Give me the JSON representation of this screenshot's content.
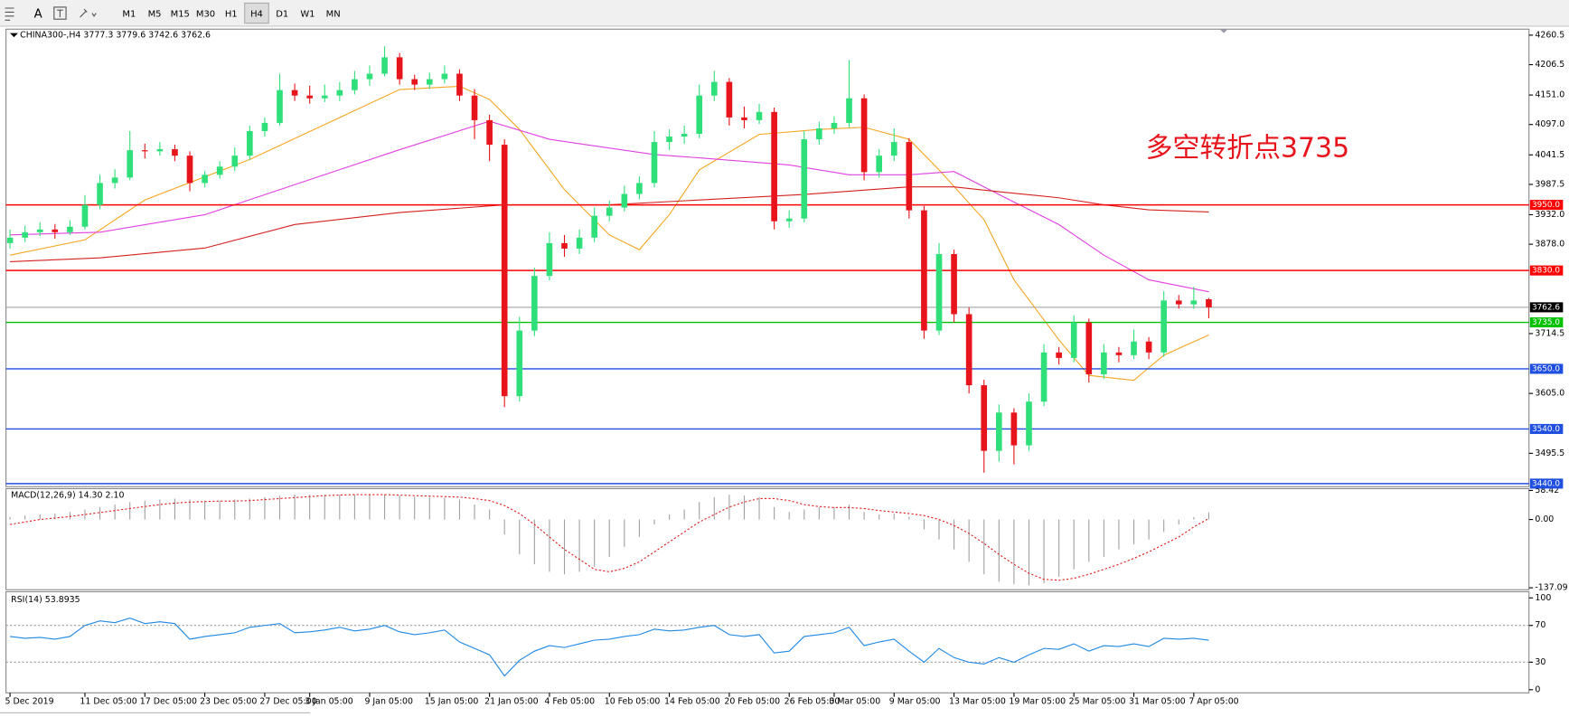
{
  "toolbar": {
    "text_tool": "A",
    "timeframes": [
      "M1",
      "M5",
      "M15",
      "M30",
      "H1",
      "H4",
      "D1",
      "W1",
      "MN"
    ],
    "active": "H4"
  },
  "chart_data": {
    "type": "candlestick",
    "title": "CHINA300-,H4 3777.3 3779.6 3742.6 3762.6",
    "annotation": "多空转折点3735",
    "up_color": "#2fe07a",
    "down_color": "#e8141b",
    "categories": [
      "5 Dec 2019",
      null,
      null,
      null,
      null,
      "11 Dec 05:00",
      null,
      null,
      null,
      "17 Dec 05:00",
      null,
      null,
      null,
      "23 Dec 05:00",
      null,
      null,
      null,
      "27 Dec 05:00",
      null,
      null,
      "3 Jan 05:00",
      null,
      null,
      null,
      "9 Jan 05:00",
      null,
      null,
      null,
      "15 Jan 05:00",
      null,
      null,
      null,
      "21 Jan 05:00",
      null,
      null,
      null,
      "4 Feb 05:00",
      null,
      null,
      null,
      "10 Feb 05:00",
      null,
      null,
      null,
      "14 Feb 05:00",
      null,
      null,
      null,
      "20 Feb 05:00",
      null,
      null,
      null,
      "26 Feb 05:00",
      null,
      null,
      "3 Mar 05:00",
      null,
      null,
      null,
      "9 Mar 05:00",
      null,
      null,
      null,
      "13 Mar 05:00",
      null,
      null,
      null,
      "19 Mar 05:00",
      null,
      null,
      null,
      "25 Mar 05:00",
      null,
      null,
      null,
      "31 Mar 05:00",
      null,
      null,
      null,
      "7 Apr 05:00",
      null
    ],
    "ohlc": [
      [
        3880,
        3905,
        3870,
        3890
      ],
      [
        3890,
        3912,
        3882,
        3900
      ],
      [
        3900,
        3918,
        3893,
        3905
      ],
      [
        3905,
        3915,
        3888,
        3900
      ],
      [
        3900,
        3922,
        3895,
        3910
      ],
      [
        3910,
        3968,
        3905,
        3950
      ],
      [
        3950,
        4005,
        3942,
        3990
      ],
      [
        3990,
        4015,
        3980,
        4000
      ],
      [
        4000,
        4085,
        3995,
        4050
      ],
      [
        4050,
        4062,
        4035,
        4048
      ],
      [
        4048,
        4065,
        4040,
        4052
      ],
      [
        4052,
        4060,
        4030,
        4040
      ],
      [
        4040,
        4048,
        3975,
        3990
      ],
      [
        3990,
        4012,
        3982,
        4005
      ],
      [
        4005,
        4030,
        3998,
        4020
      ],
      [
        4020,
        4055,
        4012,
        4040
      ],
      [
        4040,
        4095,
        4032,
        4085
      ],
      [
        4085,
        4110,
        4075,
        4100
      ],
      [
        4100,
        4190,
        4095,
        4160
      ],
      [
        4160,
        4172,
        4140,
        4150
      ],
      [
        4150,
        4168,
        4135,
        4145
      ],
      [
        4145,
        4170,
        4138,
        4150
      ],
      [
        4150,
        4175,
        4140,
        4160
      ],
      [
        4160,
        4195,
        4152,
        4180
      ],
      [
        4180,
        4205,
        4168,
        4190
      ],
      [
        4190,
        4240,
        4185,
        4220
      ],
      [
        4220,
        4228,
        4170,
        4180
      ],
      [
        4180,
        4188,
        4160,
        4170
      ],
      [
        4170,
        4192,
        4163,
        4180
      ],
      [
        4180,
        4205,
        4172,
        4190
      ],
      [
        4190,
        4198,
        4140,
        4150
      ],
      [
        4150,
        4162,
        4070,
        4105
      ],
      [
        4105,
        4115,
        4030,
        4060
      ],
      [
        4060,
        4070,
        3580,
        3600
      ],
      [
        3600,
        3745,
        3590,
        3720
      ],
      [
        3720,
        3835,
        3710,
        3820
      ],
      [
        3820,
        3900,
        3812,
        3880
      ],
      [
        3880,
        3895,
        3855,
        3870
      ],
      [
        3870,
        3905,
        3860,
        3890
      ],
      [
        3890,
        3945,
        3882,
        3930
      ],
      [
        3930,
        3958,
        3920,
        3945
      ],
      [
        3945,
        3985,
        3938,
        3970
      ],
      [
        3970,
        4002,
        3960,
        3990
      ],
      [
        3990,
        4085,
        3982,
        4065
      ],
      [
        4065,
        4088,
        4050,
        4075
      ],
      [
        4075,
        4095,
        4062,
        4080
      ],
      [
        4080,
        4170,
        4072,
        4150
      ],
      [
        4150,
        4195,
        4140,
        4175
      ],
      [
        4175,
        4182,
        4095,
        4110
      ],
      [
        4110,
        4130,
        4090,
        4105
      ],
      [
        4105,
        4135,
        4098,
        4120
      ],
      [
        4120,
        4128,
        3905,
        3920
      ],
      [
        3920,
        3940,
        3908,
        3925
      ],
      [
        3925,
        4085,
        3918,
        4070
      ],
      [
        4070,
        4102,
        4060,
        4090
      ],
      [
        4090,
        4112,
        4080,
        4100
      ],
      [
        4100,
        4215,
        4092,
        4145
      ],
      [
        4145,
        4152,
        3995,
        4010
      ],
      [
        4010,
        4052,
        4000,
        4040
      ],
      [
        4040,
        4090,
        4030,
        4065
      ],
      [
        4065,
        4072,
        3925,
        3940
      ],
      [
        3940,
        3948,
        3705,
        3720
      ],
      [
        3720,
        3880,
        3712,
        3860
      ],
      [
        3860,
        3868,
        3735,
        3750
      ],
      [
        3750,
        3762,
        3605,
        3620
      ],
      [
        3620,
        3630,
        3460,
        3500
      ],
      [
        3500,
        3585,
        3480,
        3570
      ],
      [
        3570,
        3578,
        3475,
        3510
      ],
      [
        3510,
        3605,
        3500,
        3590
      ],
      [
        3590,
        3695,
        3582,
        3680
      ],
      [
        3680,
        3690,
        3658,
        3670
      ],
      [
        3670,
        3748,
        3662,
        3735
      ],
      [
        3735,
        3742,
        3625,
        3640
      ],
      [
        3640,
        3695,
        3632,
        3680
      ],
      [
        3680,
        3690,
        3662,
        3675
      ],
      [
        3675,
        3722,
        3668,
        3700
      ],
      [
        3700,
        3708,
        3668,
        3680
      ],
      [
        3680,
        3792,
        3672,
        3775
      ],
      [
        3775,
        3785,
        3760,
        3768
      ],
      [
        3768,
        3800,
        3760,
        3775
      ],
      [
        3777.3,
        3779.6,
        3742.6,
        3762.6
      ]
    ],
    "ylim": [
      3434.5,
      4271.5
    ],
    "yticks": [
      4260.5,
      4206.5,
      {
        "value": 4151,
        "label": "4151.0"
      },
      {
        "value": 4097,
        "label": "4097.0"
      },
      4041.5,
      3987.5,
      {
        "value": 3932,
        "label": "3932.0"
      },
      {
        "value": 3878,
        "label": "3878.0"
      },
      3714.5,
      {
        "value": 3605,
        "label": "3605.0"
      },
      3495.5
    ],
    "current_price": 3762.6,
    "levels": [
      {
        "value": 3950,
        "label": "3950.0",
        "color": "#ff0000"
      },
      {
        "value": 3830,
        "label": "3830.0",
        "color": "#ff0000"
      },
      {
        "value": 3735,
        "label": "3735.0",
        "color": "#00c000"
      },
      {
        "value": 3650,
        "label": "3650.0",
        "color": "#1f4fe0"
      },
      {
        "value": 3540,
        "label": "3540.0",
        "color": "#1f4fe0"
      },
      {
        "value": 3440,
        "label": "3440.0",
        "color": "#1f4fe0"
      }
    ],
    "moving_averages": [
      {
        "color": "#f5a623",
        "index": [
          0,
          5,
          9,
          16,
          21,
          26,
          30,
          32,
          34,
          37,
          40,
          42,
          44,
          46,
          50,
          54,
          57,
          60,
          62,
          65,
          67,
          70,
          72,
          75,
          77,
          80
        ],
        "values": [
          3858,
          3886,
          3959,
          4033,
          4097,
          4161,
          4167,
          4143,
          4088,
          3978,
          3895,
          3868,
          3932,
          4014,
          4079,
          4088,
          4092,
          4070,
          4014,
          3923,
          3813,
          3703,
          3638,
          3629,
          3675,
          3712
        ]
      },
      {
        "color": "#e040e0",
        "index": [
          0,
          6,
          13,
          19,
          26,
          32,
          36,
          43,
          46,
          52,
          56,
          60,
          63,
          66,
          70,
          73,
          76,
          80
        ],
        "values": [
          3895,
          3900,
          3932,
          3987,
          4051,
          4103,
          4070,
          4042,
          4036,
          4023,
          4005,
          4005,
          4011,
          3969,
          3914,
          3858,
          3813,
          3791
        ]
      },
      {
        "color": "#d62020",
        "index": [
          0,
          6,
          13,
          19,
          26,
          33,
          40,
          46,
          53,
          60,
          63,
          66,
          70,
          73,
          76,
          80
        ],
        "values": [
          3846,
          3853,
          3871,
          3914,
          3936,
          3950,
          3950,
          3959,
          3969,
          3983,
          3983,
          3974,
          3963,
          3950,
          3941,
          3937
        ]
      }
    ],
    "macd": {
      "title": "MACD(12,26,9) 14.30 2.10",
      "ylim": [
        -141,
        62
      ],
      "yticks": [
        58.42,
        {
          "value": 0,
          "label": "0.00"
        },
        -137.09
      ],
      "histogram_color": "#a0a0a0",
      "signal_color": "#e02020",
      "histogram": [
        5,
        8,
        10,
        12,
        15,
        20,
        25,
        30,
        35,
        38,
        40,
        42,
        40,
        38,
        38,
        40,
        42,
        45,
        48,
        50,
        50,
        50,
        50,
        50,
        50,
        50,
        48,
        46,
        45,
        44,
        40,
        30,
        20,
        -30,
        -70,
        -90,
        -105,
        -110,
        -105,
        -95,
        -75,
        -55,
        -35,
        -10,
        10,
        20,
        35,
        45,
        50,
        48,
        45,
        25,
        15,
        20,
        25,
        25,
        30,
        15,
        10,
        12,
        5,
        -20,
        -40,
        -60,
        -85,
        -110,
        -125,
        -130,
        -132,
        -128,
        -115,
        -100,
        -85,
        -75,
        -60,
        -50,
        -40,
        -25,
        -10,
        5,
        14.3
      ],
      "signal": [
        -10,
        -5,
        0,
        3,
        6,
        10,
        14,
        18,
        22,
        26,
        30,
        33,
        35,
        36,
        37,
        37,
        38,
        40,
        42,
        44,
        46,
        48,
        49,
        50,
        50,
        50,
        49,
        48,
        47,
        46,
        45,
        42,
        38,
        28,
        12,
        -10,
        -35,
        -60,
        -80,
        -100,
        -105,
        -98,
        -85,
        -65,
        -45,
        -25,
        -5,
        10,
        25,
        35,
        42,
        42,
        38,
        30,
        26,
        24,
        24,
        22,
        18,
        15,
        12,
        8,
        0,
        -12,
        -28,
        -48,
        -70,
        -90,
        -108,
        -120,
        -122,
        -118,
        -110,
        -100,
        -90,
        -78,
        -65,
        -50,
        -35,
        -15,
        2.1
      ]
    },
    "rsi": {
      "title": "RSI(14) 53.8935",
      "ylim": [
        -3.4,
        106.7
      ],
      "yticks": [
        100,
        70,
        30,
        0
      ],
      "levels": [
        70,
        30
      ],
      "color": "#1e88e5",
      "values": [
        58,
        56,
        57,
        55,
        58,
        70,
        75,
        73,
        78,
        72,
        74,
        72,
        55,
        58,
        60,
        62,
        68,
        70,
        72,
        62,
        63,
        65,
        68,
        64,
        66,
        70,
        63,
        60,
        62,
        65,
        52,
        45,
        38,
        15,
        32,
        42,
        48,
        46,
        50,
        54,
        55,
        58,
        60,
        66,
        64,
        65,
        68,
        70,
        60,
        58,
        60,
        40,
        42,
        58,
        60,
        62,
        68,
        48,
        52,
        55,
        42,
        30,
        45,
        35,
        30,
        28,
        35,
        30,
        38,
        45,
        44,
        50,
        42,
        48,
        47,
        50,
        47,
        56,
        55,
        56,
        53.89
      ]
    }
  }
}
